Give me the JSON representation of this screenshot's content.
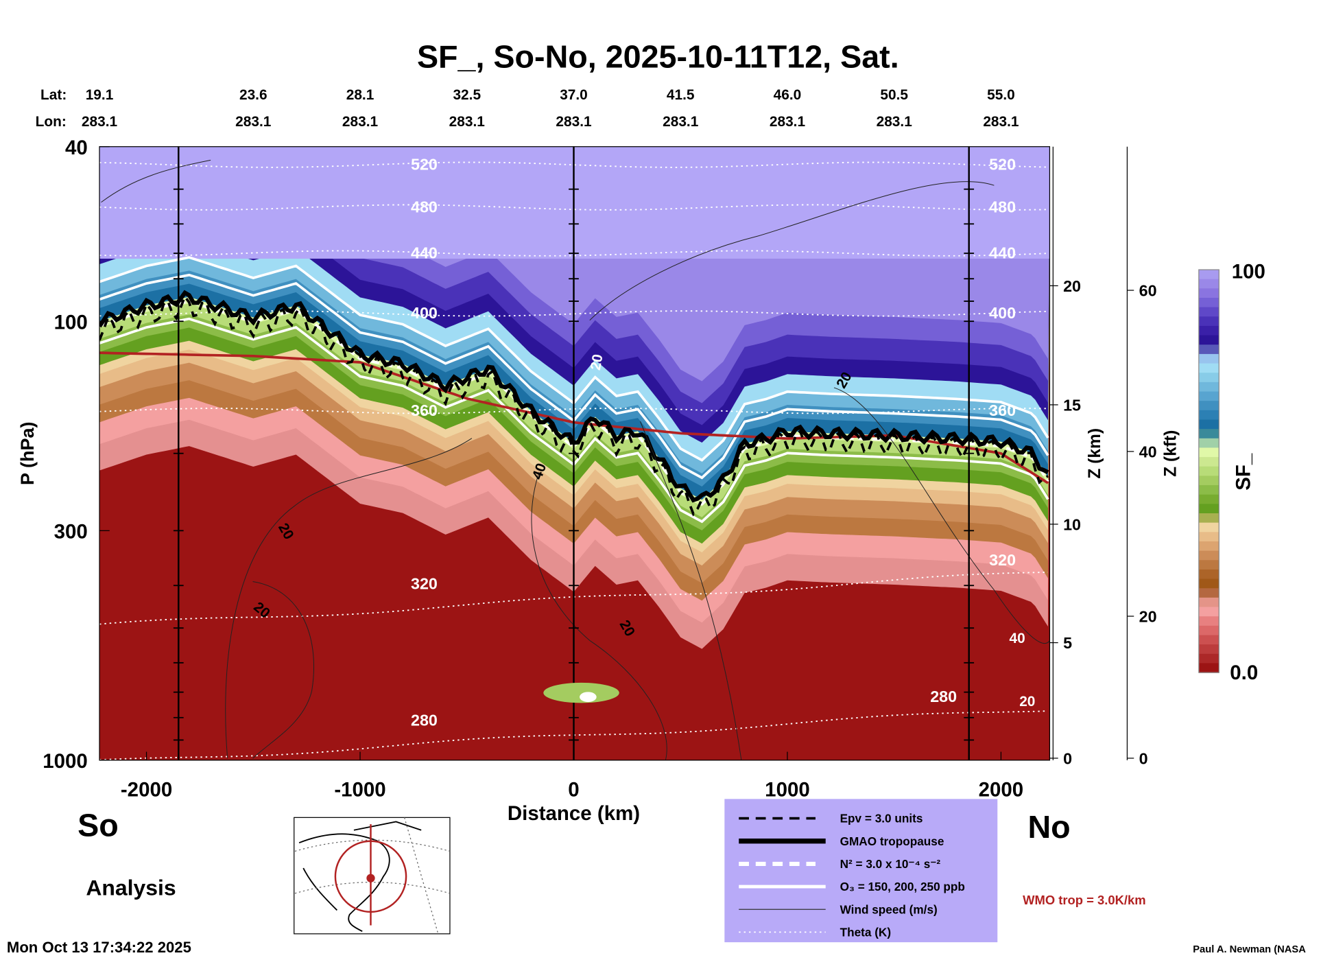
{
  "chart_data": {
    "type": "heatmap",
    "title": "SF_, So-No, 2025-10-11T12, Sat.",
    "xlabel": "Distance (km)",
    "ylabel": "P (hPa)",
    "y2label": "Z (km)",
    "y3label": "Z (kft)",
    "xlim": [
      -2220,
      2228
    ],
    "ylim": [
      1000,
      40
    ],
    "yscale": "log",
    "x_ticks": [
      "-2000",
      "-1000",
      "0",
      "1000",
      "2000"
    ],
    "x_tick_values": [
      -2000,
      -1000,
      0,
      1000,
      2000
    ],
    "y_ticks": [
      "40",
      "100",
      "300",
      "1000"
    ],
    "y_tick_values": [
      40,
      100,
      300,
      1000
    ],
    "z_km_ticks": [
      "0",
      "5",
      "10",
      "15",
      "20"
    ],
    "z_km_tick_pressures": [
      990,
      540,
      290,
      155,
      83
    ],
    "z_kft_ticks": [
      "0",
      "20",
      "40",
      "60"
    ],
    "z_kft_tick_pressures": [
      990,
      470,
      198,
      85
    ],
    "lat_label": "Lat:",
    "lon_label": "Lon:",
    "lats": [
      "19.1",
      "23.6",
      "28.1",
      "32.5",
      "37.0",
      "41.5",
      "46.0",
      "50.5",
      "55.0"
    ],
    "lons": [
      "283.1",
      "283.1",
      "283.1",
      "283.1",
      "283.1",
      "283.1",
      "283.1",
      "283.1",
      "283.1"
    ],
    "latlon_distances": [
      -2000,
      -1500,
      -1000,
      -500,
      0,
      500,
      1000,
      1500,
      2000
    ],
    "section_lines_km": [
      -1850,
      0,
      1850
    ],
    "gmao_tropopause": {
      "x": [
        -2220,
        -2000,
        -1800,
        -1500,
        -1300,
        -1000,
        -800,
        -600,
        -400,
        -200,
        0,
        100,
        200,
        300,
        400,
        500,
        600,
        700,
        800,
        900,
        1000,
        1200,
        1500,
        1800,
        2000,
        2150,
        2228
      ],
      "p": [
        100,
        92,
        88,
        98,
        92,
        119,
        125,
        140,
        128,
        160,
        189,
        165,
        182,
        178,
        205,
        240,
        255,
        230,
        190,
        185,
        178,
        180,
        182,
        185,
        188,
        200,
        230
      ]
    },
    "wmo_tropopause": {
      "x": [
        -2220,
        -1500,
        -1000,
        -500,
        0,
        500,
        1000,
        1500,
        2000,
        2228
      ],
      "p": [
        118,
        120,
        124,
        150,
        170,
        180,
        185,
        182,
        200,
        235
      ]
    },
    "theta_levels": [
      {
        "label": "520",
        "p": 44
      },
      {
        "label": "480",
        "p": 55
      },
      {
        "label": "440",
        "p": 70
      },
      {
        "label": "400",
        "p": 96
      },
      {
        "label": "360",
        "p": 160
      },
      {
        "label": "320",
        "p": 430
      },
      {
        "label": "280",
        "p": 880
      }
    ],
    "wind_labels": [
      "20",
      "20",
      "20",
      "40",
      "20",
      "20",
      "40",
      "20",
      "20"
    ],
    "colorbar": {
      "label": "SF_",
      "max_label": "100",
      "min_label": "0.0",
      "range": [
        0,
        100
      ],
      "colors": [
        "#a89bf0",
        "#9a88e8",
        "#8a74e0",
        "#7560d6",
        "#5f48c8",
        "#4a32b8",
        "#3a20a8",
        "#2c1498",
        "#5858b8",
        "#98c4ee",
        "#a0dcf4",
        "#88cce8",
        "#70b8dc",
        "#58a4d0",
        "#4090c0",
        "#2c80b4",
        "#1c70a4",
        "#3a8a9a",
        "#a0d0a8",
        "#e0f8a8",
        "#cce890",
        "#b8dc78",
        "#a4cc60",
        "#8cbc48",
        "#78ac30",
        "#64a020",
        "#a8b050",
        "#f0d4a0",
        "#e8bc88",
        "#dca470",
        "#cc8c58",
        "#bc7840",
        "#ac6428",
        "#a05818",
        "#b46840",
        "#e49488",
        "#f4a0a0",
        "#e88080",
        "#dc6868",
        "#cc5050",
        "#bc3c3c",
        "#ac2828",
        "#9c1414"
      ]
    }
  },
  "labels": {
    "south": "So",
    "north": "No",
    "analysis": "Analysis",
    "timestamp": "Mon Oct 13 17:34:22 2025",
    "credit": "Paul A. Newman (NASA",
    "wmo_trop": "WMO trop = 3.0K/km"
  },
  "legend": {
    "items": [
      "Epv = 3.0 units",
      "GMAO tropopause",
      "N² = 3.0 x 10⁻⁴ s⁻²",
      "O₃ = 150, 200, 250 ppb",
      "Wind speed (m/s)",
      "Theta (K)"
    ]
  },
  "colors": {
    "wmo": "#b22222",
    "legend_bg": "#b8aaf8",
    "bg_top": "#b3a6f7",
    "bg_red": "#9c1414"
  }
}
